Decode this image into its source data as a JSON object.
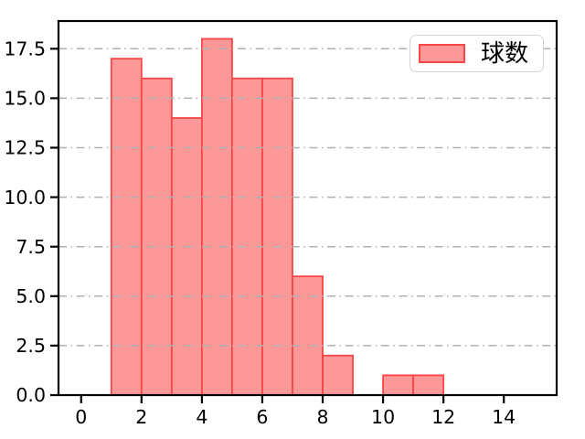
{
  "legend": {
    "label": "球数",
    "position": "upper right"
  },
  "chart_data": {
    "type": "bar",
    "subtype": "histogram",
    "title": "",
    "xlabel": "",
    "ylabel": "",
    "series": [
      {
        "name": "球数",
        "bin_edges": [
          1,
          2,
          3,
          4,
          5,
          6,
          7,
          8,
          9,
          10,
          11,
          12
        ],
        "counts": [
          17,
          16,
          14,
          18,
          16,
          16,
          6,
          2,
          0,
          1,
          1
        ]
      }
    ],
    "xlim": [
      -0.75,
      15.75
    ],
    "ylim": [
      0,
      18.9
    ],
    "xticks": [
      0,
      2,
      4,
      6,
      8,
      10,
      12,
      14
    ],
    "xtick_labels": [
      "0",
      "2",
      "4",
      "6",
      "8",
      "10",
      "12",
      "14"
    ],
    "yticks": [
      0,
      2.5,
      5,
      7.5,
      10,
      12.5,
      15,
      17.5
    ],
    "ytick_labels": [
      "0.0",
      "2.5",
      "5.0",
      "7.5",
      "10.0",
      "12.5",
      "15.0",
      "17.5"
    ],
    "grid": "horizontal, dash-dot, drawn above bars",
    "legend_position": "upper right",
    "colors": {
      "bar_fill": "#fd9898",
      "bar_edge": "#f84545",
      "grid": "#b0b0b0",
      "spine": "#000000",
      "tick_label": "#000000",
      "legend_border": "#d4d4d4",
      "background": "#ffffff"
    }
  }
}
